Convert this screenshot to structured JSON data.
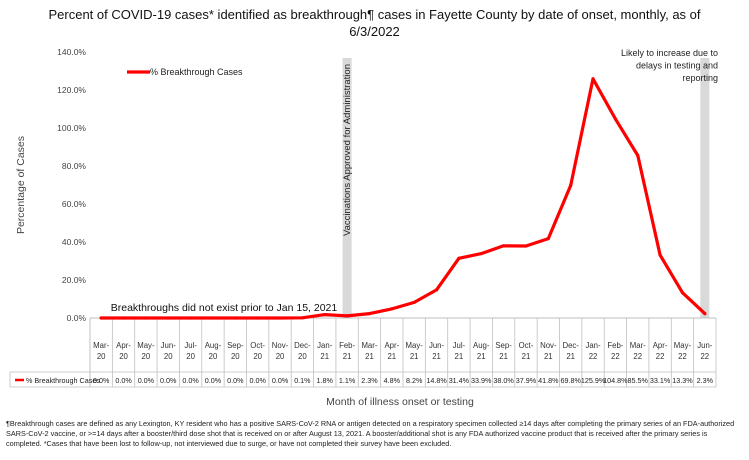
{
  "title": "Percent of COVID-19 cases* identified as breakthrough¶ cases in Fayette County by date of onset, monthly, as of 6/3/2022",
  "footnote": "¶Breakthrough cases are defined as any Lexington, KY resident who has a positive SARS-CoV-2 RNA or antigen detected on a respiratory specimen collected ≥14 days after completing the primary series of an FDA-authorized SARS-CoV-2 vaccine, or >=14 days after a booster/third dose shot that is received on or after August 13, 2021.  A booster/additional shot is any FDA authorized vaccine product that is received after the primary series is completed. *Cases that have been lost to follow-up, not interviewed due to surge, or have not completed their survey have been excluded.",
  "chart_data": {
    "type": "line",
    "ylabel": "Percentage of Cases",
    "xlabel": "Month of illness onset or testing",
    "ylim": [
      0,
      140
    ],
    "yticks": [
      "0.0%",
      "20.0%",
      "40.0%",
      "60.0%",
      "80.0%",
      "100.0%",
      "120.0%",
      "140.0%"
    ],
    "categories": [
      "Mar-20",
      "Apr-20",
      "May-20",
      "Jun-20",
      "Jul-20",
      "Aug-20",
      "Sep-20",
      "Oct-20",
      "Nov-20",
      "Dec-20",
      "Jan-21",
      "Feb-21",
      "Mar-21",
      "Apr-21",
      "May-21",
      "Jun-21",
      "Jul-21",
      "Aug-21",
      "Sep-21",
      "Oct-21",
      "Nov-21",
      "Dec-21",
      "Jan-22",
      "Feb-22",
      "Mar-22",
      "Apr-22",
      "May-22",
      "Jun-22"
    ],
    "series": [
      {
        "name": "% Breakthrough Cases",
        "color": "#ff0000",
        "values": [
          0.0,
          0.0,
          0.0,
          0.0,
          0.0,
          0.0,
          0.0,
          0.0,
          0.0,
          0.1,
          1.8,
          1.1,
          2.3,
          4.8,
          8.2,
          14.8,
          31.4,
          33.9,
          38.0,
          37.9,
          41.8,
          69.8,
          125.9,
          104.8,
          85.5,
          33.1,
          13.3,
          2.3
        ],
        "labels": [
          "0.0%",
          "0.0%",
          "0.0%",
          "0.0%",
          "0.0%",
          "0.0%",
          "0.0%",
          "0.0%",
          "0.0%",
          "0.1%",
          "1.8%",
          "1.1%",
          "2.3%",
          "4.8%",
          "8.2%",
          "14.8%",
          "31.4%",
          "33.9%",
          "38.0%",
          "37.9%",
          "41.8%",
          "69.8%",
          "125.9%",
          "104.8%",
          "85.5%",
          "33.1%",
          "13.3%",
          "2.3%"
        ]
      }
    ],
    "shaded_bands": [
      {
        "category": "Feb-21",
        "color": "#d9d9d9",
        "label": "Vaccinations Approved for Administration"
      },
      {
        "category": "Jun-22",
        "color": "#d9d9d9",
        "label": "Likely to increase due to delays in testing and reporting"
      }
    ],
    "annotations": [
      {
        "text": "Breakthroughs did not exist prior to Jan 15, 2021"
      }
    ],
    "legend_position": "top-left",
    "grid": false
  }
}
